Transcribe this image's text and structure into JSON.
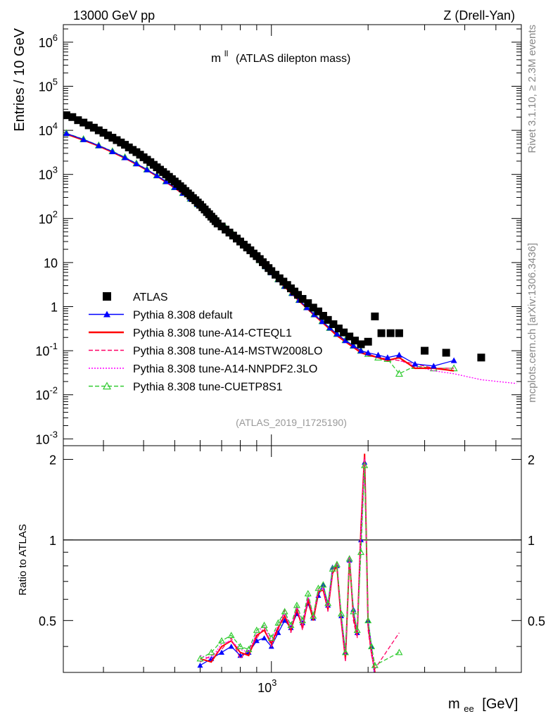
{
  "header": {
    "beam": "13000 GeV pp",
    "process": "Z (Drell-Yan)",
    "side_top": "Rivet 3.1.10, ≥ 2.3M events",
    "side_bottom": "mcplots.cern.ch [arXiv:1306.3436]",
    "analysis_id": "(ATLAS_2019_I1725190)"
  },
  "chart_data": [
    {
      "type": "scatter",
      "panel": "main",
      "title": "m^ll (ATLAS dilepton mass)",
      "title_main": "m",
      "title_sup": "ll",
      "title_rest": "(ATLAS dilepton mass)",
      "ylabel": "Entries / 10 GeV",
      "xlabel": "m_ee [GeV]",
      "xlabel_main": "m",
      "xlabel_sub": "ee",
      "xlabel_rest": "[GeV]",
      "xscale": "log",
      "yscale": "log",
      "xlim": [
        225,
        6000
      ],
      "ylim": [
        0.0007,
        2500000
      ],
      "x_tick_labels": [
        "10^3"
      ],
      "y_tick_labels": [
        "10^-3",
        "10^-2",
        "10^-1",
        "1",
        "10",
        "10^2",
        "10^3",
        "10^4",
        "10^5",
        "10^6"
      ],
      "legend_position": "lower-left",
      "series": [
        {
          "name": "ATLAS",
          "color": "#000000",
          "marker": "filled-square",
          "line": "none",
          "x": [
            230,
            240,
            250,
            260,
            270,
            280,
            290,
            300,
            310,
            320,
            330,
            340,
            350,
            360,
            370,
            380,
            390,
            400,
            410,
            420,
            430,
            440,
            450,
            460,
            470,
            480,
            490,
            500,
            510,
            520,
            530,
            540,
            550,
            560,
            570,
            580,
            590,
            600,
            610,
            620,
            630,
            640,
            650,
            660,
            670,
            680,
            700,
            720,
            740,
            760,
            780,
            800,
            820,
            840,
            860,
            880,
            900,
            920,
            940,
            960,
            980,
            1000,
            1030,
            1060,
            1090,
            1120,
            1150,
            1180,
            1210,
            1250,
            1300,
            1350,
            1400,
            1450,
            1500,
            1560,
            1620,
            1680,
            1750,
            1820,
            1900,
            2000,
            2100,
            2200,
            2350,
            2500,
            3000,
            3500,
            4500
          ],
          "y": [
            22000,
            20000,
            17000,
            15000,
            13000,
            11500,
            10000,
            8800,
            7700,
            6800,
            6000,
            5300,
            4700,
            4100,
            3600,
            3200,
            2800,
            2450,
            2150,
            1900,
            1650,
            1450,
            1280,
            1130,
            1000,
            880,
            780,
            690,
            610,
            540,
            480,
            420,
            370,
            330,
            290,
            260,
            230,
            205,
            180,
            160,
            140,
            125,
            110,
            98,
            87,
            77,
            66,
            56,
            48,
            41,
            35,
            30,
            25.5,
            22,
            19,
            16,
            14,
            12,
            10.2,
            8.8,
            7.5,
            6.4,
            5.3,
            4.4,
            3.7,
            3.1,
            2.6,
            2.2,
            1.85,
            1.5,
            1.2,
            0.95,
            0.78,
            0.62,
            0.5,
            0.4,
            0.32,
            0.26,
            0.21,
            0.17,
            0.14,
            0.16,
            0.6,
            0.25,
            0.25,
            0.25,
            0.1,
            0.09,
            0.07
          ]
        },
        {
          "name": "Pythia 8.308 default",
          "color": "#0000ff",
          "marker": "filled-triangle",
          "line": "solid",
          "x": [
            230,
            260,
            290,
            320,
            350,
            380,
            410,
            440,
            470,
            500,
            530,
            560,
            590,
            620,
            650,
            680,
            720,
            760,
            800,
            840,
            880,
            920,
            960,
            1000,
            1050,
            1100,
            1160,
            1220,
            1290,
            1360,
            1440,
            1520,
            1600,
            1700,
            1800,
            1900,
            2000,
            2150,
            2300,
            2500,
            2800,
            3200,
            3700
          ],
          "y": [
            8500,
            6200,
            4500,
            3300,
            2400,
            1750,
            1280,
            940,
            690,
            510,
            375,
            280,
            208,
            155,
            116,
            87,
            60,
            43,
            30,
            21.5,
            15.5,
            11.2,
            8.1,
            5.9,
            4.1,
            2.9,
            2.0,
            1.4,
            0.95,
            0.66,
            0.46,
            0.33,
            0.24,
            0.17,
            0.13,
            0.1,
            0.09,
            0.08,
            0.07,
            0.08,
            0.05,
            0.045,
            0.06
          ]
        },
        {
          "name": "Pythia 8.308 tune-A14-CTEQL1",
          "color": "#ff0000",
          "marker": "none",
          "line": "solid",
          "x": [
            230,
            260,
            290,
            320,
            350,
            380,
            410,
            440,
            470,
            500,
            530,
            560,
            590,
            620,
            650,
            680,
            720,
            760,
            800,
            840,
            880,
            920,
            960,
            1000,
            1050,
            1100,
            1160,
            1220,
            1290,
            1360,
            1440,
            1520,
            1600,
            1700,
            1800,
            1900,
            2000,
            2150,
            2300,
            2500,
            2800,
            3200,
            3700
          ],
          "y": [
            8200,
            6000,
            4400,
            3200,
            2350,
            1700,
            1250,
            920,
            670,
            495,
            365,
            270,
            200,
            150,
            112,
            84,
            58,
            41,
            29,
            21,
            15,
            10.8,
            7.8,
            5.7,
            4.0,
            2.8,
            1.95,
            1.35,
            0.92,
            0.64,
            0.44,
            0.31,
            0.22,
            0.16,
            0.12,
            0.09,
            0.08,
            0.07,
            0.06,
            0.07,
            0.04,
            0.04,
            0.035
          ]
        },
        {
          "name": "Pythia 8.308 tune-A14-MSTW2008LO",
          "color": "#ff0066",
          "marker": "none",
          "line": "dashed",
          "x": [
            230,
            260,
            290,
            320,
            350,
            380,
            410,
            440,
            470,
            500,
            530,
            560,
            590,
            620,
            650,
            680,
            720,
            760,
            800,
            840,
            880,
            920,
            960,
            1000,
            1050,
            1100,
            1160,
            1220,
            1290,
            1360,
            1440,
            1520,
            1600,
            1700,
            1800,
            1900,
            2000,
            2150,
            2300,
            2500,
            2800,
            3200,
            3700
          ],
          "y": [
            8300,
            6100,
            4450,
            3250,
            2380,
            1720,
            1260,
            930,
            680,
            500,
            370,
            272,
            202,
            151,
            113,
            85,
            59,
            42,
            29.5,
            21.2,
            15.2,
            11,
            7.9,
            5.8,
            4.05,
            2.85,
            1.98,
            1.38,
            0.94,
            0.65,
            0.45,
            0.32,
            0.23,
            0.165,
            0.12,
            0.1,
            0.085,
            0.07,
            0.065,
            0.06,
            0.05,
            0.04,
            0.04
          ]
        },
        {
          "name": "Pythia 8.308 tune-A14-NNPDF2.3LO",
          "color": "#ff00ff",
          "marker": "none",
          "line": "dotted",
          "x": [
            230,
            260,
            290,
            320,
            350,
            380,
            410,
            440,
            470,
            500,
            530,
            560,
            590,
            620,
            650,
            680,
            720,
            760,
            800,
            840,
            880,
            920,
            960,
            1000,
            1050,
            1100,
            1160,
            1220,
            1290,
            1360,
            1440,
            1520,
            1600,
            1700,
            1800,
            1900,
            2000,
            2150,
            2300,
            2500,
            2800,
            3200,
            3700,
            4500,
            5800
          ],
          "y": [
            8400,
            6150,
            4480,
            3280,
            2400,
            1740,
            1270,
            935,
            685,
            505,
            372,
            275,
            204,
            152,
            114,
            86,
            59.5,
            42.5,
            30,
            21.4,
            15.3,
            11.1,
            8.0,
            5.85,
            4.1,
            2.88,
            2.0,
            1.4,
            0.95,
            0.66,
            0.46,
            0.32,
            0.23,
            0.17,
            0.125,
            0.1,
            0.085,
            0.07,
            0.065,
            0.06,
            0.045,
            0.035,
            0.03,
            0.022,
            0.018
          ]
        },
        {
          "name": "Pythia 8.308 tune-CUETP8S1",
          "color": "#33cc33",
          "marker": "open-triangle",
          "line": "dashed",
          "x": [
            230,
            260,
            290,
            320,
            350,
            380,
            410,
            440,
            470,
            500,
            530,
            560,
            590,
            620,
            650,
            680,
            720,
            760,
            800,
            840,
            880,
            920,
            960,
            1000,
            1050,
            1100,
            1160,
            1220,
            1290,
            1360,
            1440,
            1520,
            1600,
            1700,
            1800,
            1900,
            2000,
            2150,
            2300,
            2500,
            2800,
            3200,
            3700
          ],
          "y": [
            8600,
            6300,
            4550,
            3350,
            2450,
            1780,
            1300,
            950,
            700,
            515,
            380,
            282,
            210,
            157,
            117,
            88,
            61,
            43.5,
            30.5,
            21.8,
            15.6,
            11.3,
            8.2,
            6.0,
            4.2,
            2.95,
            2.05,
            1.42,
            0.97,
            0.67,
            0.47,
            0.33,
            0.24,
            0.175,
            0.13,
            0.1,
            0.085,
            0.07,
            0.065,
            0.03,
            0.045,
            0.04,
            0.04
          ]
        }
      ]
    },
    {
      "type": "line",
      "panel": "ratio",
      "ylabel": "Ratio to ATLAS",
      "xscale": "log",
      "xlim": [
        225,
        6000
      ],
      "ylim": [
        0.32,
        2.25
      ],
      "y_tick_labels": [
        "0.5",
        "1",
        "2"
      ],
      "reference_line": 1,
      "series": [
        {
          "name": "Pythia 8.308 default",
          "color": "#0000ff",
          "x": [
            600,
            650,
            700,
            750,
            800,
            850,
            900,
            950,
            1000,
            1050,
            1100,
            1150,
            1200,
            1250,
            1300,
            1350,
            1400,
            1450,
            1500,
            1550,
            1600,
            1650,
            1700,
            1750,
            1800,
            1850,
            1900,
            1950,
            2000,
            2050,
            2100
          ],
          "y": [
            0.34,
            0.36,
            0.38,
            0.4,
            0.37,
            0.38,
            0.42,
            0.43,
            0.4,
            0.45,
            0.5,
            0.47,
            0.53,
            0.49,
            0.58,
            0.51,
            0.62,
            0.68,
            0.57,
            0.79,
            0.8,
            0.52,
            0.38,
            0.84,
            0.55,
            0.45,
            1.0,
            1.95,
            0.5,
            0.4,
            0.3
          ]
        },
        {
          "name": "Pythia 8.308 tune-A14-CTEQL1",
          "color": "#ff0000",
          "x": [
            600,
            650,
            700,
            750,
            800,
            850,
            900,
            950,
            1000,
            1050,
            1100,
            1150,
            1200,
            1250,
            1300,
            1350,
            1400,
            1450,
            1500,
            1550,
            1600,
            1650,
            1700,
            1750,
            1800,
            1850,
            1900,
            1950,
            2000,
            2050,
            2100
          ],
          "y": [
            0.36,
            0.35,
            0.4,
            0.42,
            0.38,
            0.37,
            0.44,
            0.46,
            0.41,
            0.47,
            0.52,
            0.46,
            0.55,
            0.47,
            0.6,
            0.5,
            0.64,
            0.65,
            0.55,
            0.75,
            0.8,
            0.5,
            0.36,
            0.86,
            0.52,
            0.44,
            1.1,
            2.1,
            0.48,
            0.38,
            0.32
          ]
        },
        {
          "name": "Pythia 8.308 tune-A14-MSTW2008LO",
          "color": "#ff0066",
          "x": [
            600,
            650,
            700,
            750,
            800,
            850,
            900,
            950,
            1000,
            1050,
            1100,
            1150,
            1200,
            1250,
            1300,
            1350,
            1400,
            1450,
            1500,
            1550,
            1600,
            1650,
            1700,
            1750,
            1800,
            1850,
            1900,
            1950,
            2000,
            2050,
            2100,
            2500
          ],
          "y": [
            0.35,
            0.37,
            0.39,
            0.43,
            0.36,
            0.39,
            0.43,
            0.47,
            0.4,
            0.46,
            0.55,
            0.45,
            0.57,
            0.46,
            0.61,
            0.52,
            0.66,
            0.67,
            0.54,
            0.77,
            0.82,
            0.5,
            0.35,
            0.88,
            0.5,
            0.43,
            1.05,
            2.05,
            0.46,
            0.37,
            0.33,
            0.45
          ]
        },
        {
          "name": "Pythia 8.308 tune-A14-NNPDF2.3LO",
          "color": "#ff00ff",
          "x": [
            600,
            650,
            700,
            750,
            800,
            850,
            900,
            950,
            1000,
            1050,
            1100,
            1150,
            1200,
            1250,
            1300,
            1350,
            1400,
            1450,
            1500,
            1550,
            1600,
            1650,
            1700,
            1750,
            1800,
            1850,
            1900,
            1950,
            2000,
            2050,
            2100
          ],
          "y": [
            0.37,
            0.36,
            0.41,
            0.42,
            0.39,
            0.38,
            0.45,
            0.48,
            0.42,
            0.48,
            0.53,
            0.47,
            0.56,
            0.48,
            0.62,
            0.51,
            0.65,
            0.66,
            0.56,
            0.76,
            0.83,
            0.51,
            0.37,
            0.87,
            0.53,
            0.45,
            1.08,
            2.0,
            0.49,
            0.39,
            0.31
          ]
        },
        {
          "name": "Pythia 8.308 tune-CUETP8S1",
          "color": "#33cc33",
          "x": [
            600,
            650,
            700,
            750,
            800,
            850,
            900,
            950,
            1000,
            1050,
            1100,
            1150,
            1200,
            1250,
            1300,
            1350,
            1400,
            1450,
            1500,
            1550,
            1600,
            1650,
            1700,
            1750,
            1800,
            1850,
            1900,
            1950,
            2000,
            2050,
            2100,
            2500
          ],
          "y": [
            0.36,
            0.38,
            0.42,
            0.44,
            0.4,
            0.39,
            0.46,
            0.48,
            0.43,
            0.49,
            0.54,
            0.48,
            0.57,
            0.5,
            0.63,
            0.52,
            0.66,
            0.68,
            0.58,
            0.78,
            0.81,
            0.53,
            0.38,
            0.85,
            0.54,
            0.46,
            0.9,
            1.9,
            0.5,
            0.4,
            0.34,
            0.38
          ]
        }
      ]
    }
  ]
}
